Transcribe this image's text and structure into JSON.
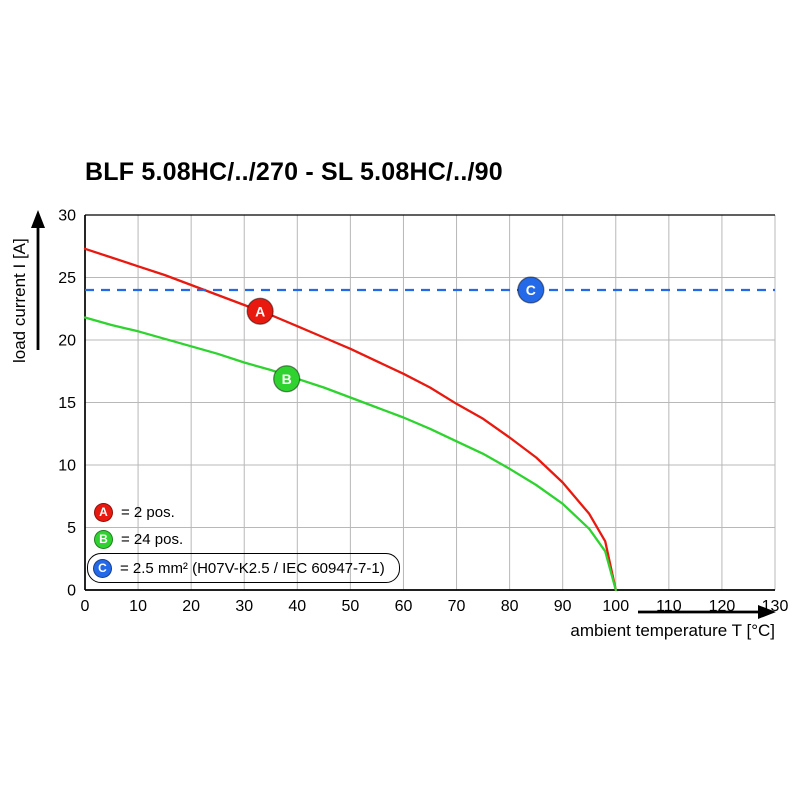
{
  "chart_data": {
    "type": "line",
    "title": "BLF 5.08HC/../270 - SL 5.08HC/../90",
    "xlabel": "ambient temperature T [°C]",
    "ylabel": "load current I [A]",
    "xlim": [
      0,
      130
    ],
    "ylim": [
      0,
      30
    ],
    "xticks": [
      0,
      10,
      20,
      30,
      40,
      50,
      60,
      70,
      80,
      90,
      100,
      110,
      120,
      130
    ],
    "yticks": [
      0,
      5,
      10,
      15,
      20,
      25,
      30
    ],
    "grid": true,
    "legend_position": "lower-left inside plot",
    "series": [
      {
        "id": "A",
        "legend": "= 2 pos.",
        "color": "#e8190f",
        "type": "curve",
        "marker": {
          "x": 33,
          "y": 22.3
        },
        "points": [
          [
            0,
            27.3
          ],
          [
            5,
            26.6
          ],
          [
            10,
            25.9
          ],
          [
            15,
            25.2
          ],
          [
            20,
            24.4
          ],
          [
            25,
            23.6
          ],
          [
            30,
            22.8
          ],
          [
            35,
            22.0
          ],
          [
            40,
            21.1
          ],
          [
            45,
            20.2
          ],
          [
            50,
            19.3
          ],
          [
            55,
            18.3
          ],
          [
            60,
            17.3
          ],
          [
            65,
            16.2
          ],
          [
            70,
            14.9
          ],
          [
            75,
            13.7
          ],
          [
            80,
            12.2
          ],
          [
            85,
            10.6
          ],
          [
            90,
            8.6
          ],
          [
            95,
            6.1
          ],
          [
            98,
            3.9
          ],
          [
            100,
            0
          ]
        ]
      },
      {
        "id": "B",
        "legend": "= 24 pos.",
        "color": "#2fd32f",
        "type": "curve",
        "marker": {
          "x": 38,
          "y": 16.9
        },
        "points": [
          [
            0,
            21.8
          ],
          [
            5,
            21.2
          ],
          [
            10,
            20.7
          ],
          [
            15,
            20.1
          ],
          [
            20,
            19.5
          ],
          [
            25,
            18.9
          ],
          [
            30,
            18.2
          ],
          [
            35,
            17.6
          ],
          [
            40,
            16.9
          ],
          [
            45,
            16.2
          ],
          [
            50,
            15.4
          ],
          [
            55,
            14.6
          ],
          [
            60,
            13.8
          ],
          [
            65,
            12.9
          ],
          [
            70,
            11.9
          ],
          [
            75,
            10.9
          ],
          [
            80,
            9.7
          ],
          [
            85,
            8.4
          ],
          [
            90,
            6.9
          ],
          [
            95,
            4.9
          ],
          [
            98,
            3.1
          ],
          [
            100,
            0
          ]
        ]
      },
      {
        "id": "C",
        "legend": "= 2.5 mm² (H07V-K2.5 / IEC 60947-7-1)",
        "color": "#2469e8",
        "type": "hline",
        "dashed": true,
        "value": 24,
        "marker": {
          "x": 84,
          "y": 24
        }
      }
    ]
  }
}
